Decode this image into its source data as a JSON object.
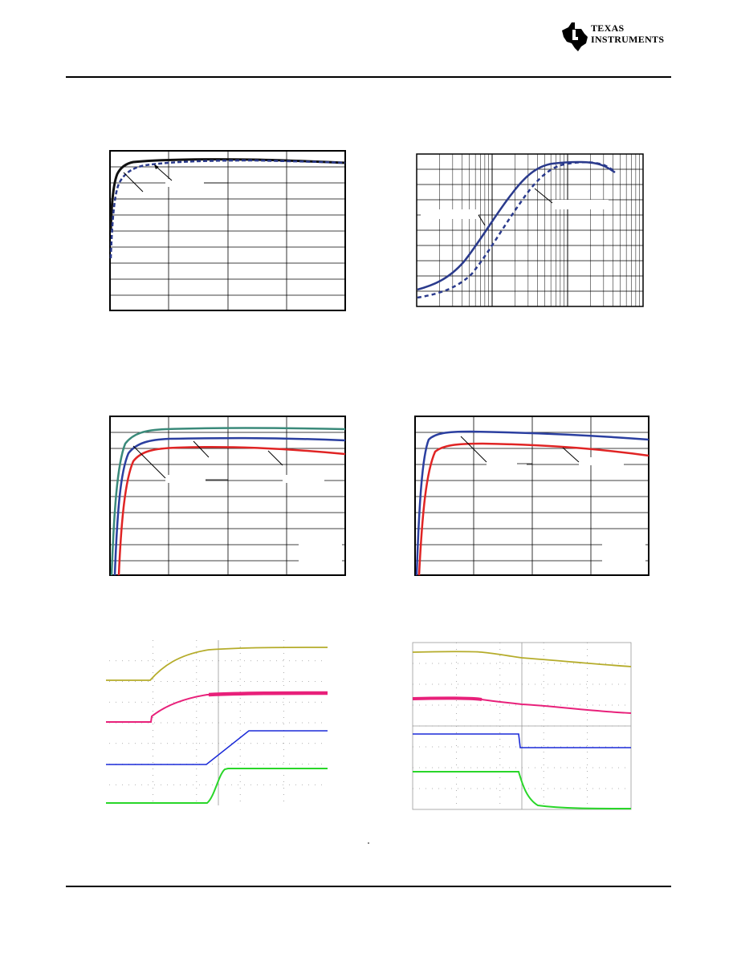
{
  "header": {
    "logo_icon": "texas-state-outline-icon",
    "logo_text_line1": "TEXAS",
    "logo_text_line2": "INSTRUMENTS",
    "logo_color": "#000000"
  },
  "colors": {
    "navy": "#2a3a8c",
    "black": "#111111",
    "teal": "#3a8a7a",
    "blue": "#2b3fa0",
    "red": "#e02424",
    "scope_yellow": "#b5ac2a",
    "scope_magenta": "#e8207a",
    "scope_blue": "#1a2ad8",
    "scope_green": "#29d629",
    "grid": "#000000",
    "scope_grid": "#9a9a9a"
  },
  "figures": [
    {
      "id": "fig1",
      "kind": "linear-grid",
      "series": [
        "solid-black",
        "dashed-navy"
      ]
    },
    {
      "id": "fig2",
      "kind": "log-x-grid",
      "series": [
        "solid-navy",
        "dashed-navy"
      ]
    },
    {
      "id": "fig3",
      "kind": "linear-grid",
      "series": [
        "teal",
        "blue",
        "red"
      ]
    },
    {
      "id": "fig4",
      "kind": "linear-grid",
      "series": [
        "blue",
        "red"
      ]
    },
    {
      "id": "fig5",
      "kind": "oscilloscope-turn-on",
      "traces": [
        "yellow",
        "magenta",
        "blue",
        "green"
      ]
    },
    {
      "id": "fig6",
      "kind": "oscilloscope-turn-off",
      "traces": [
        "yellow",
        "magenta",
        "blue",
        "green"
      ]
    }
  ]
}
